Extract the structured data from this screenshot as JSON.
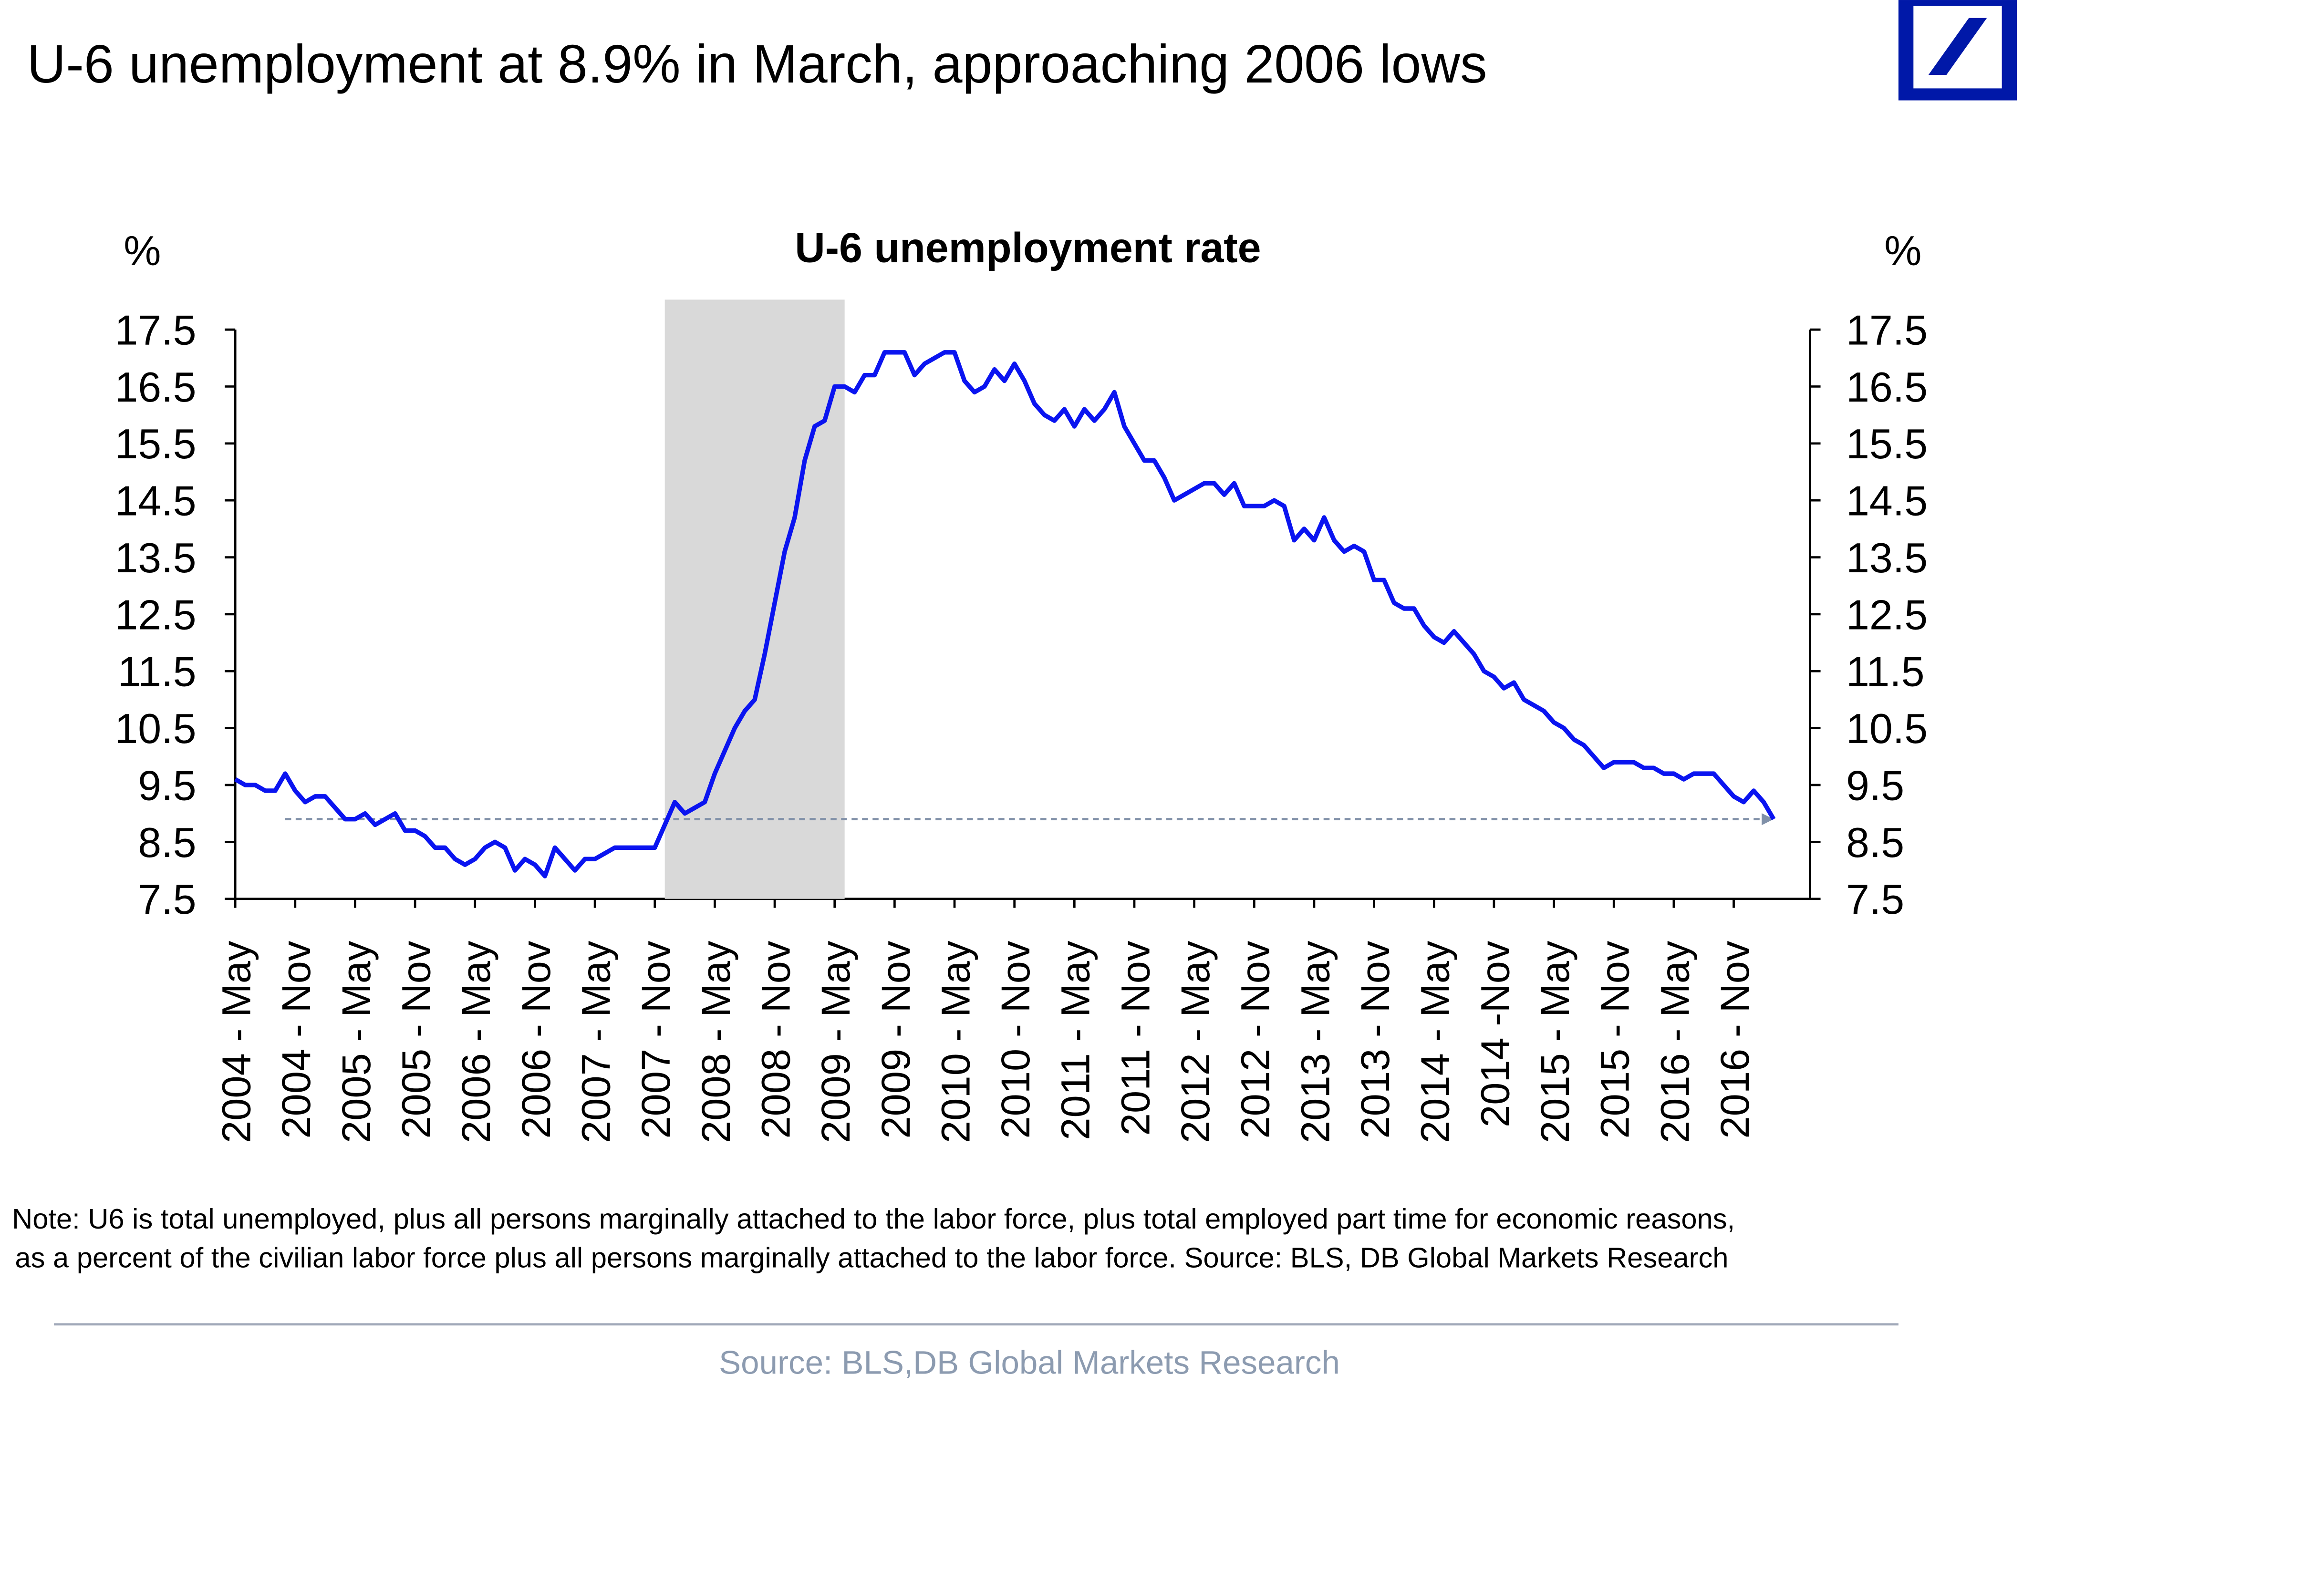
{
  "chart_data": {
    "type": "line",
    "title": "U-6 unemployment at 8.9% in March, approaching 2006 lows",
    "subtitle": "U-6 unemployment rate",
    "y_label": "%",
    "y2_label": "%",
    "note": [
      "Note: U6 is total unemployed, plus all persons marginally attached to the labor force, plus total employed part time for economic reasons,",
      "as a percent of the civilian labor force plus all persons marginally attached to the labor force. Source: BLS, DB Global Markets Research"
    ],
    "source": "Source: BLS,DB Global Markets Research",
    "categories": [
      "2004 - May",
      null,
      null,
      null,
      null,
      null,
      "2004 - Nov",
      null,
      null,
      null,
      null,
      null,
      "2005 - May",
      null,
      null,
      null,
      null,
      null,
      "2005 - Nov",
      null,
      null,
      null,
      null,
      null,
      "2006 - May",
      null,
      null,
      null,
      null,
      null,
      "2006 - Nov",
      null,
      null,
      null,
      null,
      null,
      "2007 - May",
      null,
      null,
      null,
      null,
      null,
      "2007 - Nov",
      null,
      null,
      null,
      null,
      null,
      "2008 - May",
      null,
      null,
      null,
      null,
      null,
      "2008 - Nov",
      null,
      null,
      null,
      null,
      null,
      "2009 - May",
      null,
      null,
      null,
      null,
      null,
      "2009 - Nov",
      null,
      null,
      null,
      null,
      null,
      "2010 - May",
      null,
      null,
      null,
      null,
      null,
      "2010 - Nov",
      null,
      null,
      null,
      null,
      null,
      "2011 - May",
      null,
      null,
      null,
      null,
      null,
      "2011 - Nov",
      null,
      null,
      null,
      null,
      null,
      "2012 - May",
      null,
      null,
      null,
      null,
      null,
      "2012 - Nov",
      null,
      null,
      null,
      null,
      null,
      "2013 - May",
      null,
      null,
      null,
      null,
      null,
      "2013 - Nov",
      null,
      null,
      null,
      null,
      null,
      "2014 - May",
      null,
      null,
      null,
      null,
      null,
      "2014 -Nov",
      null,
      null,
      null,
      null,
      null,
      "2015 - May",
      null,
      null,
      null,
      null,
      null,
      "2015 - Nov",
      null,
      null,
      null,
      null,
      null,
      "2016 - May",
      null,
      null,
      null,
      null,
      null,
      "2016 - Nov",
      null,
      null,
      null,
      null
    ],
    "series": [
      {
        "name": "U-6 unemployment rate",
        "color": "#0a14f0",
        "values": [
          9.6,
          9.5,
          9.5,
          9.4,
          9.4,
          9.7,
          9.4,
          9.2,
          9.3,
          9.3,
          9.1,
          8.9,
          8.9,
          9.0,
          8.8,
          8.9,
          9.0,
          8.7,
          8.7,
          8.6,
          8.4,
          8.4,
          8.2,
          8.1,
          8.2,
          8.4,
          8.5,
          8.4,
          8.0,
          8.2,
          8.1,
          7.9,
          8.4,
          8.2,
          8.0,
          8.2,
          8.2,
          8.3,
          8.4,
          8.4,
          8.4,
          8.4,
          8.4,
          8.8,
          9.2,
          9.0,
          9.1,
          9.2,
          9.7,
          10.1,
          10.5,
          10.8,
          11.0,
          11.8,
          12.7,
          13.6,
          14.2,
          15.2,
          15.8,
          15.9,
          16.5,
          16.5,
          16.4,
          16.7,
          16.7,
          17.1,
          17.1,
          17.1,
          16.7,
          16.9,
          17.0,
          17.1,
          17.1,
          16.6,
          16.4,
          16.5,
          16.8,
          16.6,
          16.9,
          16.6,
          16.2,
          16.0,
          15.9,
          16.1,
          15.8,
          16.1,
          15.9,
          16.1,
          16.4,
          15.8,
          15.5,
          15.2,
          15.2,
          14.9,
          14.5,
          14.6,
          14.7,
          14.8,
          14.8,
          14.6,
          14.8,
          14.4,
          14.4,
          14.4,
          14.5,
          14.4,
          13.8,
          14.0,
          13.8,
          14.2,
          13.8,
          13.6,
          13.7,
          13.6,
          13.1,
          13.1,
          12.7,
          12.6,
          12.6,
          12.3,
          12.1,
          12.0,
          12.2,
          12.0,
          11.8,
          11.5,
          11.4,
          11.2,
          11.3,
          11.0,
          10.9,
          10.8,
          10.6,
          10.5,
          10.3,
          10.2,
          10.0,
          9.8,
          9.9,
          9.9,
          9.9,
          9.8,
          9.8,
          9.7,
          9.7,
          9.6,
          9.7,
          9.7,
          9.7,
          9.5,
          9.3,
          9.2,
          9.4,
          9.2,
          8.9
        ]
      }
    ],
    "ylim": [
      7.5,
      17.5
    ],
    "yticks": [
      7.5,
      8.5,
      9.5,
      10.5,
      11.5,
      12.5,
      13.5,
      14.5,
      15.5,
      16.5,
      17.5
    ],
    "y2lim": [
      7.5,
      17.5
    ],
    "y2ticks": [
      7.5,
      8.5,
      9.5,
      10.5,
      11.5,
      12.5,
      13.5,
      14.5,
      15.5,
      16.5,
      17.5
    ],
    "shaded_range": {
      "from": 43,
      "to": 61,
      "color": "#d9d9d9"
    },
    "reference_line": {
      "value": 8.9,
      "from": 5,
      "color": "#8090a8"
    },
    "grid": false
  }
}
